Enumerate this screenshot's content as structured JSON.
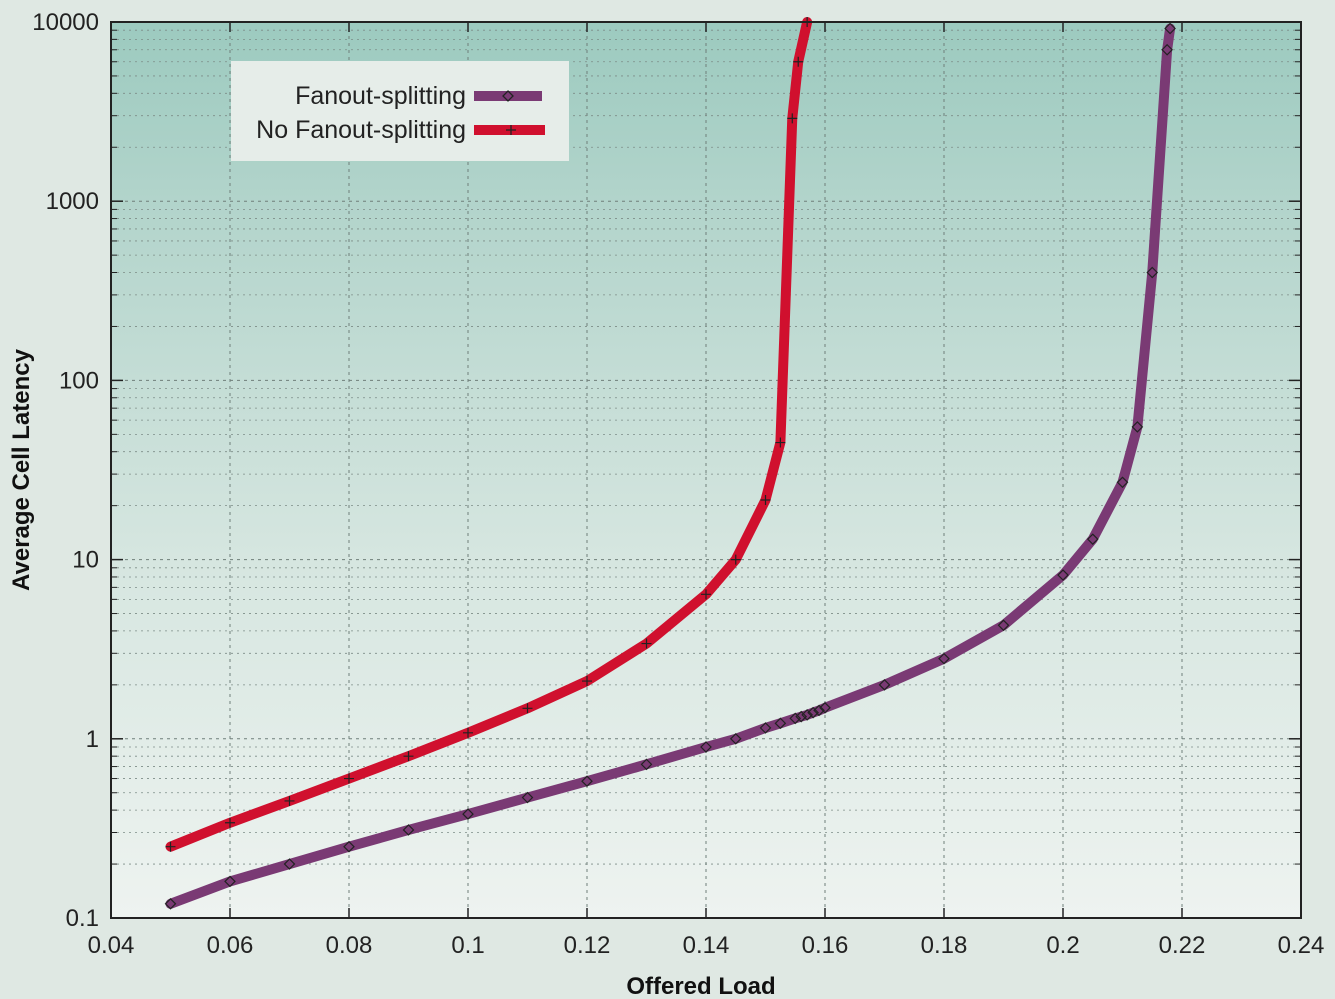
{
  "chart_data": {
    "type": "line",
    "title": "",
    "xlabel": "Offered Load",
    "ylabel": "Average Cell Latency",
    "xlim": [
      0.04,
      0.24
    ],
    "ylim": [
      0.1,
      10000
    ],
    "y_scale": "log",
    "grid": true,
    "legend_placement": "top-left",
    "x_ticks": [
      "0.04",
      "0.06",
      "0.08",
      "0.1",
      "0.12",
      "0.14",
      "0.16",
      "0.18",
      "0.2",
      "0.22",
      "0.24"
    ],
    "y_ticks": [
      "0.1",
      "1",
      "10",
      "100",
      "1000",
      "10000"
    ],
    "series": [
      {
        "name": "Fanout-splitting",
        "color": "#7a3a74",
        "marker": "diamond",
        "points": [
          [
            0.05,
            0.12
          ],
          [
            0.06,
            0.16
          ],
          [
            0.07,
            0.2
          ],
          [
            0.08,
            0.25
          ],
          [
            0.09,
            0.31
          ],
          [
            0.1,
            0.38
          ],
          [
            0.11,
            0.47
          ],
          [
            0.12,
            0.58
          ],
          [
            0.13,
            0.72
          ],
          [
            0.14,
            0.9
          ],
          [
            0.145,
            1.0
          ],
          [
            0.15,
            1.15
          ],
          [
            0.1525,
            1.22
          ],
          [
            0.155,
            1.3
          ],
          [
            0.156,
            1.33
          ],
          [
            0.157,
            1.36
          ],
          [
            0.158,
            1.4
          ],
          [
            0.159,
            1.44
          ],
          [
            0.16,
            1.49
          ],
          [
            0.17,
            2.0
          ],
          [
            0.18,
            2.8
          ],
          [
            0.19,
            4.3
          ],
          [
            0.2,
            8.2
          ],
          [
            0.205,
            13
          ],
          [
            0.21,
            27
          ],
          [
            0.2125,
            55
          ],
          [
            0.215,
            400
          ],
          [
            0.2175,
            7000
          ],
          [
            0.218,
            9200
          ]
        ]
      },
      {
        "name": "No Fanout-splitting",
        "color": "#d0102e",
        "marker": "plus",
        "points": [
          [
            0.05,
            0.25
          ],
          [
            0.06,
            0.34
          ],
          [
            0.07,
            0.45
          ],
          [
            0.08,
            0.6
          ],
          [
            0.09,
            0.8
          ],
          [
            0.1,
            1.08
          ],
          [
            0.11,
            1.48
          ],
          [
            0.12,
            2.1
          ],
          [
            0.13,
            3.4
          ],
          [
            0.14,
            6.4
          ],
          [
            0.145,
            10
          ],
          [
            0.15,
            21.5
          ],
          [
            0.1525,
            45
          ],
          [
            0.1545,
            2900
          ],
          [
            0.1555,
            6000
          ],
          [
            0.157,
            10000
          ]
        ]
      }
    ]
  }
}
